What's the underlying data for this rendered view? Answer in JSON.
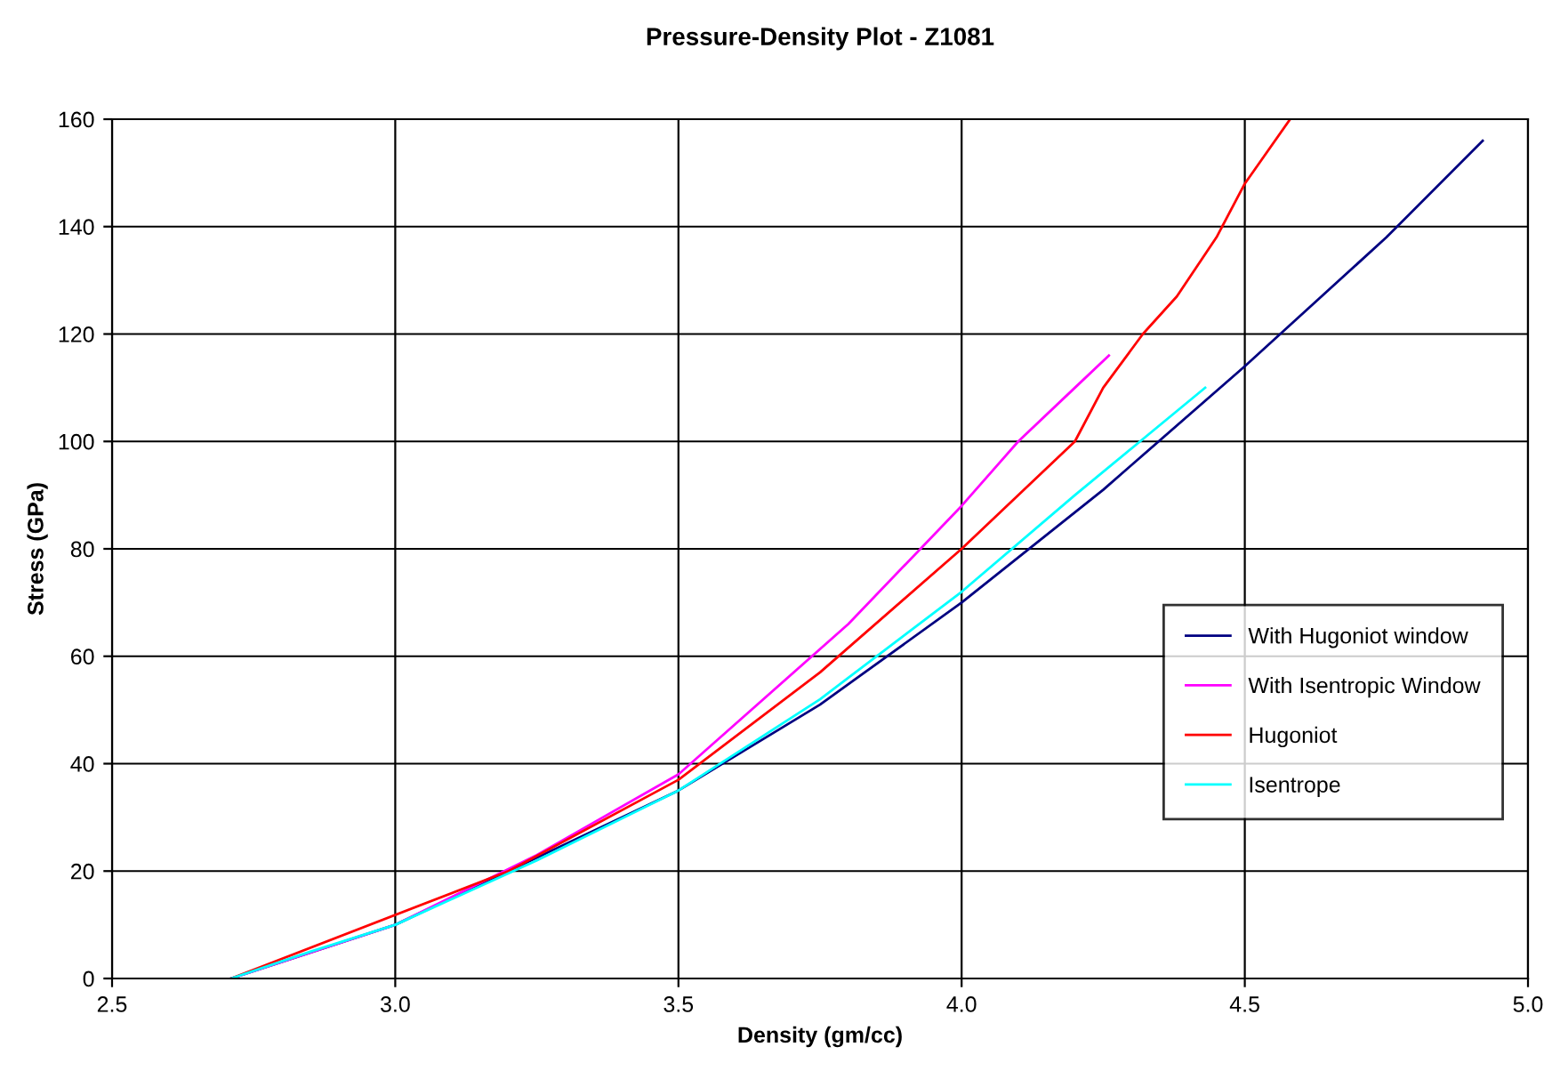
{
  "chart_data": {
    "type": "line",
    "title": "Pressure-Density Plot - Z1081",
    "xlabel": "Density (gm/cc)",
    "ylabel": "Stress (GPa)",
    "xlim": [
      2.5,
      5.0
    ],
    "ylim": [
      0,
      160
    ],
    "xticks": [
      2.5,
      {
        "value": 3.0,
        "label": "3.0"
      },
      3.5,
      {
        "value": 4.0,
        "label": "4.0"
      },
      4.5,
      {
        "value": 5.0,
        "label": "5.0"
      }
    ],
    "yticks": [
      0,
      20,
      40,
      60,
      80,
      100,
      120,
      140,
      160
    ],
    "grid": true,
    "legend": "right",
    "marker": "none",
    "line_style": "solid",
    "series": [
      {
        "name": "With Hugoniot window",
        "color": "#000080",
        "x": [
          2.71,
          3.0,
          3.5,
          3.75,
          4.0,
          4.25,
          4.5,
          4.75,
          4.92
        ],
        "values": [
          0,
          10,
          35,
          51,
          70,
          91,
          114,
          138,
          156
        ]
      },
      {
        "name": "With Isentropic Window",
        "color": "#ff00ff",
        "x": [
          2.71,
          3.0,
          3.25,
          3.5,
          3.8,
          4.0,
          4.1,
          4.2,
          4.26
        ],
        "values": [
          0,
          10,
          23,
          38,
          66,
          88,
          100,
          110,
          116
        ]
      },
      {
        "name": "Hugoniot",
        "color": "#ff0000",
        "x": [
          2.71,
          3.2,
          3.5,
          3.75,
          4.0,
          4.2,
          4.25,
          4.32,
          4.38,
          4.45,
          4.5,
          4.58
        ],
        "values": [
          0,
          20,
          37,
          57,
          80,
          100,
          110,
          120,
          127,
          138,
          148,
          160
        ]
      },
      {
        "name": "Isentrope",
        "color": "#00ffff",
        "x": [
          2.71,
          2.85,
          3.0,
          3.25,
          3.5,
          3.75,
          4.0,
          4.2,
          4.43
        ],
        "values": [
          0,
          5,
          10,
          22,
          35,
          52,
          72,
          90,
          110
        ]
      }
    ]
  }
}
